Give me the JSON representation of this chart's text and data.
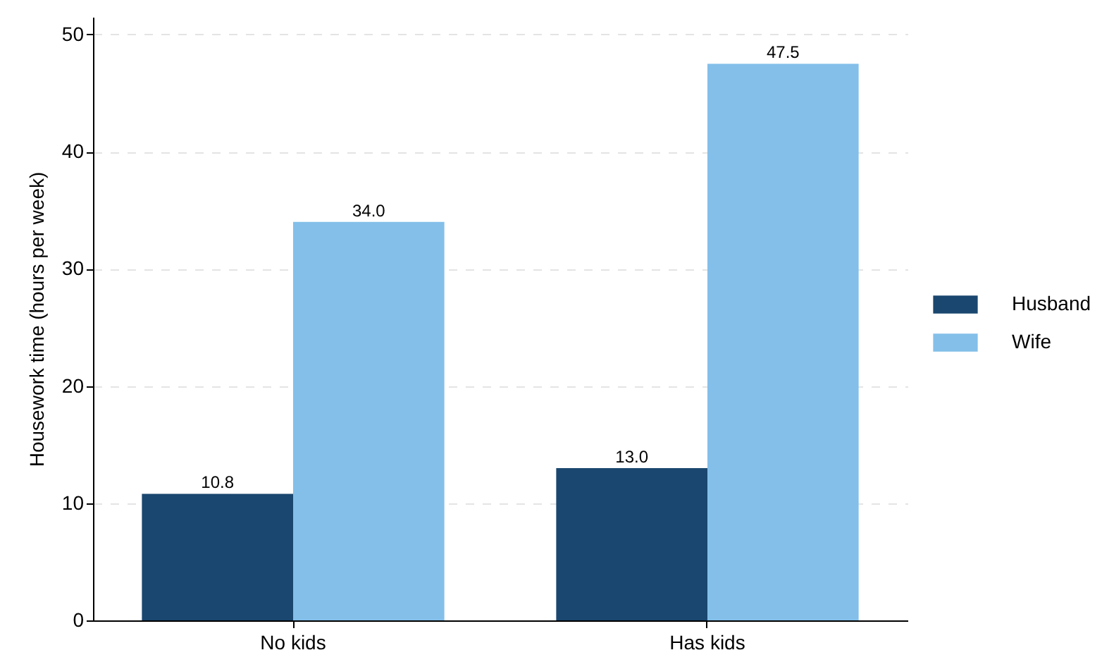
{
  "chart_data": {
    "type": "bar",
    "ylabel": "Housework time (hours per week)",
    "categories": [
      "No kids",
      "Has kids"
    ],
    "series": [
      {
        "name": "Husband",
        "color": "#1a476f",
        "values": [
          10.8,
          13.0
        ],
        "value_labels": [
          "10.8",
          "13.0"
        ]
      },
      {
        "name": "Wife",
        "color": "#83bfe9",
        "values": [
          34.0,
          47.5
        ],
        "value_labels": [
          "34.0",
          "47.5"
        ]
      }
    ],
    "ylim": [
      0,
      51.5
    ],
    "yticks": [
      0,
      10,
      20,
      30,
      40,
      50
    ],
    "grid": "y",
    "legend": "right"
  }
}
